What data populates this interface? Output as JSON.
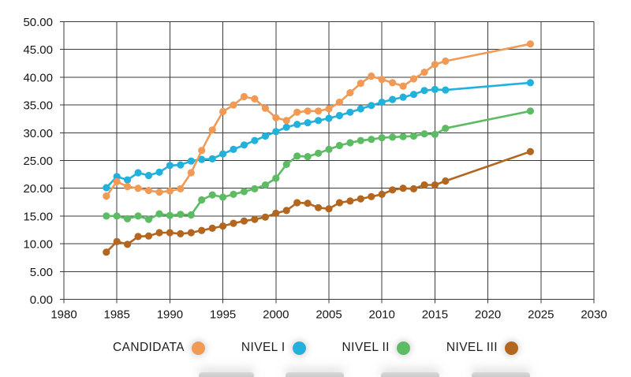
{
  "page": {
    "background": "#ffffff"
  },
  "chart_data": {
    "type": "line",
    "title": "",
    "xlabel": "",
    "ylabel": "",
    "xlim": [
      1980,
      2030
    ],
    "ylim": [
      0,
      50
    ],
    "x_ticks": [
      1980,
      1985,
      1990,
      1995,
      2000,
      2005,
      2010,
      2015,
      2020,
      2025,
      2030
    ],
    "y_ticks": [
      0,
      5,
      10,
      15,
      20,
      25,
      30,
      35,
      40,
      45,
      50
    ],
    "y_tick_labels": [
      "0.00",
      "5.00",
      "10.00",
      "15.00",
      "20.00",
      "25.00",
      "30.00",
      "35.00",
      "40.00",
      "45.00",
      "50.00"
    ],
    "grid": true,
    "grid_color": "#3b3b3b",
    "axis_text_color": "#161616",
    "legend_position": "bottom",
    "marker": "circle",
    "x": [
      1984,
      1985,
      1986,
      1987,
      1988,
      1989,
      1990,
      1991,
      1992,
      1993,
      1994,
      1995,
      1996,
      1997,
      1998,
      1999,
      2000,
      2001,
      2002,
      2003,
      2004,
      2005,
      2006,
      2007,
      2008,
      2009,
      2010,
      2011,
      2012,
      2013,
      2014,
      2015,
      2016,
      2024
    ],
    "series": [
      {
        "name": "CANDIDATA",
        "color": "#F09A55",
        "values": [
          18.6,
          21.2,
          20.3,
          20.0,
          19.6,
          19.3,
          19.5,
          19.9,
          22.8,
          26.8,
          30.5,
          33.8,
          35.0,
          36.5,
          36.1,
          34.4,
          32.7,
          32.2,
          33.7,
          33.9,
          33.9,
          34.3,
          35.5,
          37.2,
          38.9,
          40.2,
          39.6,
          39.0,
          38.4,
          39.7,
          40.9,
          42.3,
          42.9,
          46.0
        ]
      },
      {
        "name": "NIVEL I",
        "color": "#22B1DB",
        "values": [
          20.1,
          22.1,
          21.5,
          22.8,
          22.3,
          22.9,
          24.1,
          24.2,
          24.9,
          25.2,
          25.3,
          26.2,
          27.0,
          27.8,
          28.6,
          29.4,
          30.2,
          31.0,
          31.5,
          31.8,
          32.2,
          32.6,
          33.1,
          33.7,
          34.3,
          34.9,
          35.5,
          36.0,
          36.4,
          36.9,
          37.6,
          37.8,
          37.7,
          39.0
        ]
      },
      {
        "name": "NIVEL II",
        "color": "#5CBB63",
        "values": [
          15.0,
          15.0,
          14.5,
          15.0,
          14.4,
          15.4,
          15.1,
          15.3,
          15.2,
          17.9,
          18.8,
          18.4,
          18.9,
          19.4,
          19.9,
          20.6,
          21.8,
          24.3,
          25.8,
          25.7,
          26.3,
          27.0,
          27.7,
          28.2,
          28.6,
          28.8,
          29.1,
          29.2,
          29.3,
          29.4,
          29.8,
          29.7,
          30.8,
          33.9
        ]
      },
      {
        "name": "NIVEL III",
        "color": "#B2661F",
        "values": [
          8.5,
          10.4,
          9.9,
          11.3,
          11.4,
          12.0,
          12.0,
          11.8,
          12.0,
          12.4,
          12.8,
          13.2,
          13.7,
          14.1,
          14.4,
          14.8,
          15.5,
          16.0,
          17.4,
          17.3,
          16.5,
          16.3,
          17.4,
          17.7,
          18.1,
          18.5,
          18.9,
          19.7,
          20.0,
          19.9,
          20.6,
          20.6,
          21.3,
          26.6
        ]
      }
    ]
  },
  "footer": {
    "cropped_bar_count": 4
  }
}
